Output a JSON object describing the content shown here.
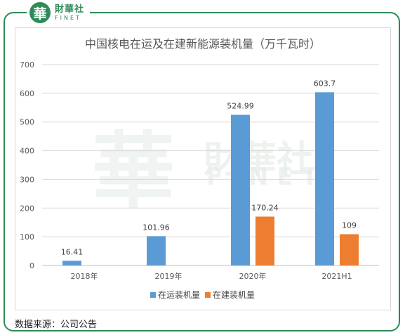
{
  "brand": {
    "mark": "華",
    "name_cn": "財華社",
    "name_en": "FINET"
  },
  "watermark": {
    "big": "華",
    "cn": "財華社",
    "en": "FINET"
  },
  "source": "数据来源：公司公告",
  "colors": {
    "accent": "#2e8b57",
    "series1": "#5b9bd5",
    "series2": "#ed7d31",
    "grid": "#d9d9d9"
  },
  "chart_data": {
    "type": "bar",
    "title": "中国核电在运及在建新能源装机量（万千瓦时）",
    "categories": [
      "2018年",
      "2019年",
      "2020年",
      "2021H1"
    ],
    "series": [
      {
        "name": "在运装机量",
        "values": [
          16.41,
          101.96,
          524.99,
          603.7
        ],
        "labels": [
          "16.41",
          "101.96",
          "524.99",
          "603.7"
        ]
      },
      {
        "name": "在建装机量",
        "values": [
          null,
          null,
          170.24,
          109
        ],
        "labels": [
          "",
          "",
          "170.24",
          "109"
        ]
      }
    ],
    "ylim": [
      0,
      700
    ],
    "yticks": [
      0,
      100,
      200,
      300,
      400,
      500,
      600,
      700
    ],
    "grid": true,
    "legend": "bottom"
  }
}
